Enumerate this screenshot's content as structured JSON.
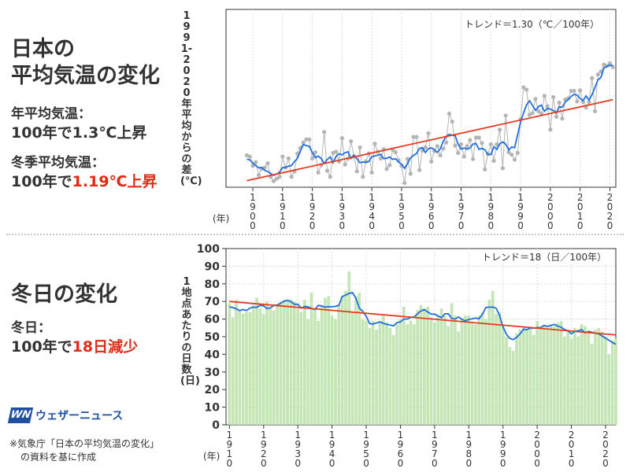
{
  "panel_top": {
    "title_line1": "日本の",
    "title_line2": "平均気温の変化",
    "annual_label": "年平均気温：",
    "annual_value": "100年で1.3℃上昇",
    "winter_label": "冬季平均気温：",
    "winter_value_prefix": "100年で",
    "winter_value_highlight": "1.19℃上昇",
    "ylabel": "1991-2020年平均からの差(℃)",
    "trend": "トレンド＝1.30（℃／100年）"
  },
  "panel_bottom": {
    "title": "冬日の変化",
    "label": "冬日：",
    "value_prefix": "100年で",
    "value_highlight": "18日減少",
    "ylabel": "1地点あたりの日数(日)",
    "trend": "トレンド＝18（日／100年）"
  },
  "logo": {
    "mark": "WN",
    "text": "ウェザーニュース"
  },
  "note": {
    "line1": "※気象庁「日本の平均気温の変化」",
    "line2": "の資料を基に作成"
  },
  "colors": {
    "accent_red": "#e02a16",
    "trend_line": "#e8391f",
    "moving_avg": "#1f6fe0",
    "raw_points": "#b4b4b4",
    "bars": "#c4e6b4",
    "brand_blue": "#1e4fa0"
  },
  "chart_data": [
    {
      "type": "line",
      "ylabel": "1991-2020年平均からの差(℃)",
      "xunit": "(年)",
      "x_ticks": [
        "1900",
        "1910",
        "1920",
        "1930",
        "1940",
        "1950",
        "1960",
        "1970",
        "1980",
        "1990",
        "2000",
        "2010",
        "2020"
      ],
      "xlim": [
        1891,
        2022
      ],
      "y_range_estimated": [
        -1.8,
        1.1
      ],
      "annotation": "トレンド＝1.30（℃／100年）",
      "raw_start_year": 1898,
      "raw_values": [
        -1.28,
        -1.3,
        -1.45,
        -1.39,
        -1.6,
        -1.5,
        -1.48,
        -1.41,
        -1.63,
        -1.7,
        -1.66,
        -1.63,
        -1.3,
        -1.48,
        -1.33,
        -1.63,
        -1.54,
        -1.25,
        -1.16,
        -1.07,
        -1.02,
        -1.02,
        -1.33,
        -1.23,
        -1.56,
        -1.44,
        -0.9,
        -1.53,
        -1.63,
        -1.24,
        -1.22,
        -1.38,
        -1.0,
        -1.43,
        -1.33,
        -1.05,
        -1.3,
        -1.54,
        -1.15,
        -1.63,
        -1.38,
        -1.25,
        -1.56,
        -1.09,
        -1.22,
        -1.33,
        -1.18,
        -1.5,
        -1.44,
        -1.19,
        -1.23,
        -1.36,
        -1.45,
        -1.73,
        -1.34,
        -1.58,
        -0.98,
        -0.98,
        -1.52,
        -1.2,
        -1.15,
        -0.92,
        -1.38,
        -1.21,
        -1.13,
        -1.28,
        -1.17,
        -1.07,
        -0.6,
        -0.73,
        -1.12,
        -1.24,
        -1.1,
        -1.3,
        -1.13,
        -1.03,
        -1.34,
        -0.99,
        -0.99,
        -1.08,
        -1.51,
        -1.26,
        -1.1,
        -1.37,
        -1.1,
        -0.86,
        -1.49,
        -0.63,
        -1.23,
        -1.27,
        -1.35,
        -1.24,
        -0.69,
        -0.17,
        -0.21,
        -0.62,
        -0.59,
        -0.36,
        -0.56,
        -0.6,
        -0.31,
        -0.48,
        -0.86,
        -0.33,
        -0.65,
        -0.42,
        -0.68,
        -0.37,
        -0.35,
        -0.23,
        -0.23,
        -0.4,
        -0.22,
        -0.41,
        -0.5,
        -0.41,
        -0.02,
        -0.56,
        0.04,
        0.09,
        0.2,
        0.18,
        0.22,
        0.16
      ]
    },
    {
      "type": "bar",
      "ylabel": "1地点あたりの日数(日)",
      "xunit": "(年)",
      "x_ticks": [
        "1910",
        "1920",
        "1930",
        "1940",
        "1950",
        "1960",
        "1970",
        "1980",
        "1990",
        "2000",
        "2010",
        "2020"
      ],
      "xlim": [
        1909,
        2023
      ],
      "ylim": [
        0,
        100
      ],
      "y_ticks": [
        0,
        10,
        20,
        30,
        40,
        50,
        60,
        70,
        80,
        90,
        100
      ],
      "annotation": "トレンド＝18（日／100年）",
      "start_year": 1910,
      "values": [
        69,
        61,
        71,
        65,
        63,
        64,
        64,
        68,
        72,
        66,
        63,
        70,
        66,
        65,
        68,
        70,
        71,
        71,
        71,
        70,
        66,
        64,
        71,
        60,
        75,
        65,
        59,
        68,
        72,
        73,
        62,
        60,
        68,
        73,
        76,
        87,
        64,
        73,
        75,
        60,
        59,
        55,
        59,
        54,
        59,
        62,
        58,
        55,
        51,
        57,
        60,
        67,
        57,
        59,
        57,
        65,
        68,
        66,
        67,
        61,
        58,
        62,
        66,
        62,
        56,
        69,
        62,
        53,
        60,
        62,
        62,
        58,
        57,
        62,
        64,
        60,
        71,
        76,
        63,
        64,
        57,
        50,
        44,
        42,
        52,
        54,
        56,
        54,
        55,
        51,
        59,
        55,
        56,
        55,
        57,
        56,
        58,
        59,
        50,
        54,
        49,
        55,
        50,
        57,
        56,
        52,
        46,
        54,
        55,
        53,
        50,
        40,
        48,
        49
      ],
      "trend": {
        "start": 70,
        "end": 51
      }
    }
  ]
}
